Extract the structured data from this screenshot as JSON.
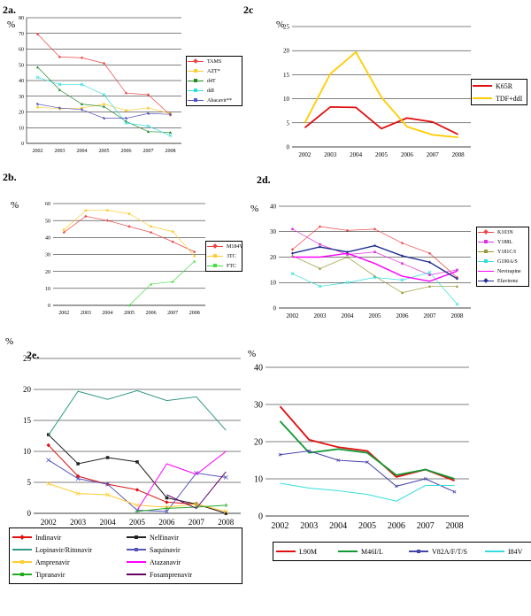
{
  "panels": {
    "p2a": {
      "label": "2a.",
      "ylabel": "%"
    },
    "p2b": {
      "label": "2b.",
      "ylabel": "%"
    },
    "p2c": {
      "label": "2c",
      "ylabel": "%"
    },
    "p2d": {
      "label": "2d.",
      "ylabel": "%"
    },
    "p2e": {
      "label": "2e.",
      "ylabel": "%"
    },
    "p2f": {
      "label": "",
      "ylabel": "%"
    }
  },
  "chart_data": [
    {
      "id": "2a",
      "type": "line",
      "title": "2a.",
      "x": [
        "2002",
        "2003",
        "2004",
        "2005",
        "2006",
        "2007",
        "2008"
      ],
      "ylim": [
        0,
        80
      ],
      "yticks": [
        0,
        10,
        20,
        30,
        40,
        50,
        60,
        70,
        80
      ],
      "series": [
        {
          "name": "TAMS",
          "color": "#ee4444",
          "marker": "diamond",
          "values": [
            69.5,
            55,
            54.5,
            51,
            32,
            31,
            18
          ]
        },
        {
          "name": "AZT*",
          "color": "#ffcc33",
          "marker": "square",
          "values": [
            23,
            22,
            22.5,
            25,
            21,
            22.5,
            19
          ]
        },
        {
          "name": "d4T",
          "color": "#228822",
          "marker": "triangle",
          "values": [
            48.5,
            34,
            25,
            23.5,
            14,
            7.5,
            7
          ]
        },
        {
          "name": "ddI",
          "color": "#33dddd",
          "marker": "x",
          "values": [
            42,
            37.5,
            37.5,
            31,
            13,
            11,
            5
          ]
        },
        {
          "name": "Abacavir**",
          "color": "#5555bb",
          "marker": "star",
          "values": [
            25,
            22.5,
            21.5,
            16,
            16,
            19,
            18.5
          ]
        }
      ]
    },
    {
      "id": "2b",
      "type": "line",
      "title": "2b.",
      "x": [
        "2002",
        "2003",
        "2004",
        "2005",
        "2006",
        "2007",
        "2008"
      ],
      "ylim": [
        0,
        60
      ],
      "yticks": [
        0,
        10,
        20,
        30,
        40,
        50,
        60
      ],
      "series": [
        {
          "name": "M184V",
          "color": "#ee4444",
          "marker": "diamond",
          "values": [
            43,
            52.5,
            50,
            46.5,
            43,
            37.5,
            31.5
          ]
        },
        {
          "name": "3TC",
          "color": "#ffcc33",
          "marker": "square",
          "values": [
            44.5,
            56,
            56,
            54,
            46.5,
            43.5,
            29
          ]
        },
        {
          "name": "FTC",
          "color": "#44dd44",
          "marker": "triangle",
          "values": [
            null,
            null,
            null,
            0,
            12.5,
            14,
            26
          ]
        }
      ]
    },
    {
      "id": "2c",
      "type": "line",
      "title": "2c",
      "x": [
        "2002",
        "2003",
        "2004",
        "2005",
        "2006",
        "2007",
        "2008"
      ],
      "ylim": [
        0,
        25
      ],
      "yticks": [
        0,
        5,
        10,
        15,
        20,
        25
      ],
      "series": [
        {
          "name": "K65R",
          "color": "#e01010",
          "marker": "none",
          "values": [
            4,
            8.3,
            8.2,
            3.8,
            6,
            5.2,
            2.6
          ]
        },
        {
          "name": "TDF+ddI",
          "color": "#ffcc00",
          "marker": "none",
          "values": [
            5,
            15.2,
            19.7,
            10.3,
            4.2,
            2.5,
            2
          ]
        }
      ]
    },
    {
      "id": "2d",
      "type": "line",
      "title": "2d.",
      "x": [
        "2002",
        "2003",
        "2004",
        "2005",
        "2006",
        "2007",
        "2008"
      ],
      "ylim": [
        0,
        40
      ],
      "yticks": [
        0,
        10,
        20,
        30,
        40
      ],
      "series": [
        {
          "name": "K103N",
          "color": "#ee4444",
          "marker": "diamond",
          "values": [
            23,
            32,
            30.5,
            31,
            25.5,
            21.5,
            12
          ]
        },
        {
          "name": "Y188L",
          "color": "#dd33dd",
          "marker": "square",
          "values": [
            31,
            25,
            21,
            22,
            17.5,
            13,
            15
          ]
        },
        {
          "name": "Y181C/I",
          "color": "#999933",
          "marker": "triangle",
          "values": [
            20.5,
            15.5,
            20,
            12.5,
            6,
            8.5,
            8.5
          ]
        },
        {
          "name": "G190A/S",
          "color": "#33dddd",
          "marker": "x",
          "values": [
            13.5,
            8.5,
            10,
            12,
            11,
            14,
            1.5
          ]
        },
        {
          "name": "Nevirapine",
          "color": "#ff00ff",
          "marker": "none",
          "values": [
            20,
            20,
            21.5,
            17.5,
            12.5,
            10.5,
            14.5
          ]
        },
        {
          "name": "Efavirenz",
          "color": "#1f2f8f",
          "marker": "diamond",
          "values": [
            21.5,
            24,
            22,
            24.5,
            20.5,
            18,
            11.5
          ]
        }
      ]
    },
    {
      "id": "2e",
      "type": "line",
      "title": "2e.",
      "x": [
        "2002",
        "2003",
        "2004",
        "2005",
        "2006",
        "2007",
        "2008"
      ],
      "ylim": [
        0,
        25
      ],
      "yticks": [
        0,
        5,
        10,
        15,
        20,
        25
      ],
      "series": [
        {
          "name": "Indinavir",
          "color": "#e01010",
          "marker": "diamond",
          "values": [
            11,
            6,
            4.7,
            3.8,
            1.8,
            1.5,
            0
          ]
        },
        {
          "name": "Nelfinavir",
          "color": "#222222",
          "marker": "square",
          "values": [
            12.7,
            8,
            9,
            8.3,
            2.5,
            1.5,
            0
          ]
        },
        {
          "name": "Lopinavir/Ritonavir",
          "color": "#339988",
          "marker": "none",
          "values": [
            12.6,
            19.7,
            18.4,
            19.8,
            18.2,
            18.8,
            13.4
          ]
        },
        {
          "name": "Saquinavir",
          "color": "#5555bb",
          "marker": "x",
          "values": [
            8.6,
            5.6,
            4.7,
            0.5,
            0.3,
            6.5,
            5.8
          ]
        },
        {
          "name": "Amprenavir",
          "color": "#ffcc33",
          "marker": "x",
          "values": [
            4.8,
            3.2,
            3,
            1.3,
            1,
            1.5,
            0.3
          ]
        },
        {
          "name": "Atazanavir",
          "color": "#ff00ff",
          "marker": "none",
          "values": [
            null,
            null,
            null,
            0.5,
            8,
            6.3,
            10
          ]
        },
        {
          "name": "Tipranavir",
          "color": "#22aa22",
          "marker": "plus",
          "values": [
            null,
            null,
            null,
            0.3,
            0.8,
            1,
            1.3
          ]
        },
        {
          "name": "Fosamprenavir",
          "color": "#660066",
          "marker": "none",
          "values": [
            null,
            null,
            null,
            null,
            3,
            0.8,
            6.7
          ]
        }
      ]
    },
    {
      "id": "2f",
      "type": "line",
      "title": "",
      "x": [
        "2002",
        "2003",
        "2004",
        "2005",
        "2006",
        "2007",
        "2008"
      ],
      "ylim": [
        0,
        40
      ],
      "yticks": [
        0,
        10,
        20,
        30,
        40
      ],
      "series": [
        {
          "name": "L90M",
          "color": "#e01010",
          "marker": "none",
          "values": [
            29.5,
            20.5,
            18.5,
            17.5,
            10.5,
            12.5,
            9.5
          ]
        },
        {
          "name": "M46I/L",
          "color": "#119933",
          "marker": "none",
          "values": [
            25.5,
            17,
            18,
            17,
            11,
            12.5,
            10
          ]
        },
        {
          "name": "V82A/F/T/S",
          "color": "#4444aa",
          "marker": "x",
          "values": [
            16.5,
            17.5,
            15,
            14.5,
            8,
            10,
            6.5
          ]
        },
        {
          "name": "I84V",
          "color": "#33dddd",
          "marker": "none",
          "values": [
            8.8,
            7.5,
            6.8,
            5.8,
            4,
            8.2,
            8.2
          ]
        }
      ]
    }
  ]
}
